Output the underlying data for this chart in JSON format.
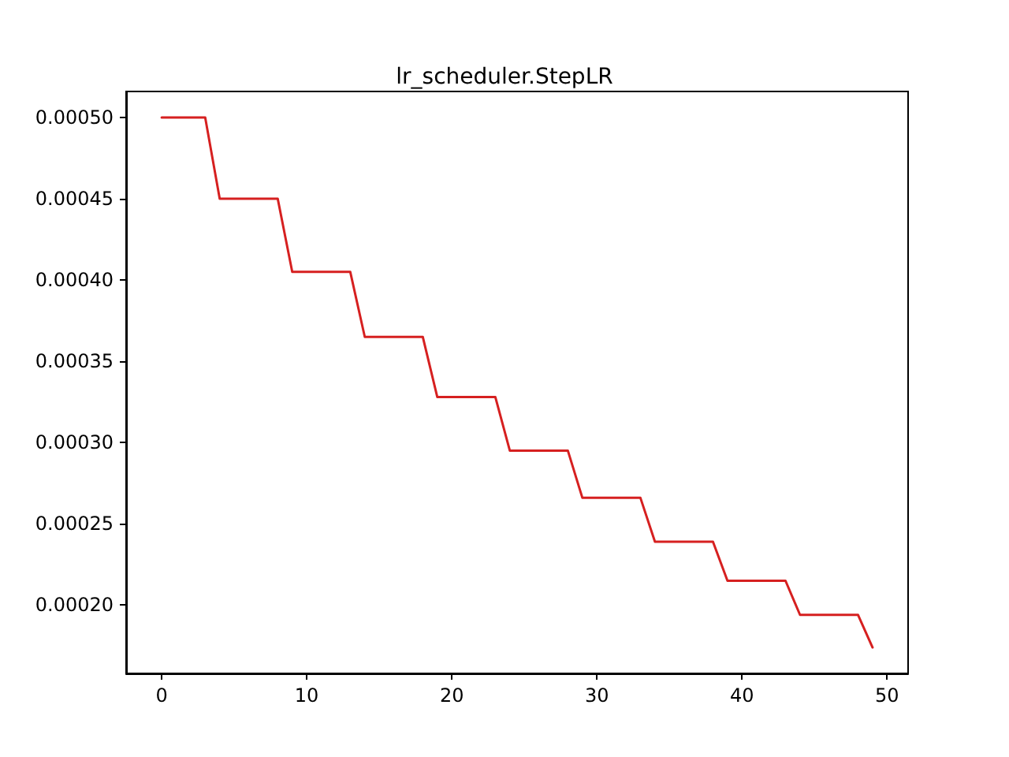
{
  "chart_data": {
    "type": "line",
    "title": "lr_scheduler.StepLR",
    "x": [
      0,
      3,
      4,
      8,
      9,
      13,
      14,
      18,
      19,
      23,
      24,
      28,
      29,
      33,
      34,
      38,
      39,
      43,
      44,
      48,
      49
    ],
    "series": [
      {
        "color": "#d62020",
        "values": [
          0.0005,
          0.0005,
          0.00045,
          0.00045,
          0.000405,
          0.000405,
          0.000365,
          0.000365,
          0.000328,
          0.000328,
          0.000295,
          0.000295,
          0.000266,
          0.000266,
          0.000239,
          0.000239,
          0.000215,
          0.000215,
          0.000194,
          0.000194,
          0.000174
        ]
      }
    ],
    "xlim": [
      -2.45,
      51.45
    ],
    "xticks": [
      0,
      10,
      20,
      30,
      40,
      50
    ],
    "ylim": [
      0.000158,
      0.000516
    ],
    "yticks": [
      {
        "value": 0.0002,
        "label": "0.00020"
      },
      {
        "value": 0.00025,
        "label": "0.00025"
      },
      {
        "value": 0.0003,
        "label": "0.00030"
      },
      {
        "value": 0.00035,
        "label": "0.00035"
      },
      {
        "value": 0.0004,
        "label": "0.00040"
      },
      {
        "value": 0.00045,
        "label": "0.00045"
      },
      {
        "value": 0.0005,
        "label": "0.00050"
      }
    ],
    "marker": "none",
    "line_style": "solid"
  }
}
